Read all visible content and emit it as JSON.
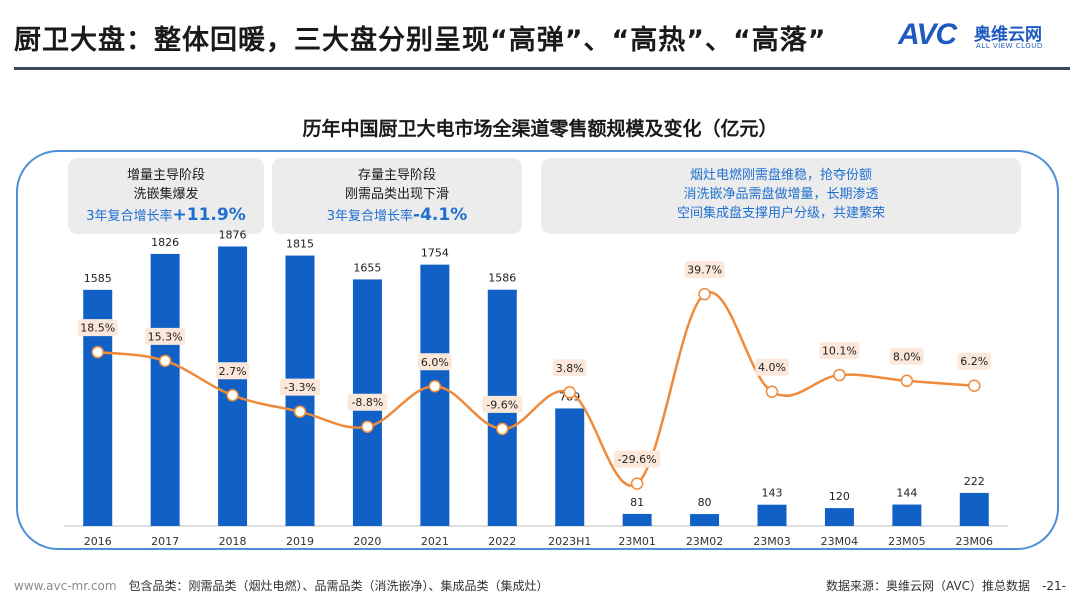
{
  "header": {
    "title": "厨卫大盘：整体回暖，三大盘分别呈现“高弹”、“高热”、“高落”",
    "logo_mark": "AVC",
    "logo_cn": "奥维云网",
    "logo_en": "ALL VIEW CLOUD"
  },
  "panels": {
    "stage1": {
      "line1": "增量主导阶段",
      "line2": "洗嵌集爆发",
      "growth_prefix": "3年复合增长率",
      "growth_value": "+11.9%"
    },
    "stage2": {
      "line1": "存量主导阶段",
      "line2": "刚需品类出现下滑",
      "growth_prefix": "3年复合增长率",
      "growth_value": "-4.1%"
    },
    "stage3": {
      "line1": "烟灶电燃刚需盘维稳，抢夺份额",
      "line2": "消洗嵌净品需盘做增量，长期渗透",
      "line3": "空间集成盘支撑用户分级，共建繁荣"
    }
  },
  "chart_data": {
    "type": "bar",
    "title": "历年中国厨卫大电市场全渠道零售额规模及变化（亿元）",
    "categories": [
      "2016",
      "2017",
      "2018",
      "2019",
      "2020",
      "2021",
      "2022",
      "2023H1",
      "23M01",
      "23M02",
      "23M03",
      "23M04",
      "23M05",
      "23M06"
    ],
    "series": [
      {
        "type": "bar",
        "values": [
          1585,
          1826,
          1876,
          1815,
          1655,
          1754,
          1586,
          789,
          81,
          80,
          143,
          120,
          144,
          222
        ],
        "color": "#1160c6"
      },
      {
        "type": "line",
        "values": [
          18.5,
          15.3,
          2.7,
          -3.3,
          -8.8,
          6.0,
          -9.6,
          3.8,
          -29.6,
          39.7,
          4.0,
          10.1,
          8.0,
          6.2
        ],
        "labels": [
          "18.5%",
          "15.3%",
          "2.7%",
          "-3.3%",
          "-8.8%",
          "6.0%",
          "-9.6%",
          "3.8%",
          "-29.6%",
          "39.7%",
          "4.0%",
          "10.1%",
          "8.0%",
          "6.2%"
        ],
        "color": "#ee8a3c"
      }
    ],
    "bar_ylim": [
      0,
      2000
    ],
    "line_ylim": [
      -40,
      50
    ],
    "grid": false,
    "legend": "none"
  },
  "footer": {
    "url": "www.avc-mr.com",
    "note": "包含品类：刚需品类（烟灶电燃）、品需品类（消洗嵌净）、集成品类（集成灶）",
    "source": "数据来源：奥维云网（AVC）推总数据",
    "page": "-21-"
  }
}
